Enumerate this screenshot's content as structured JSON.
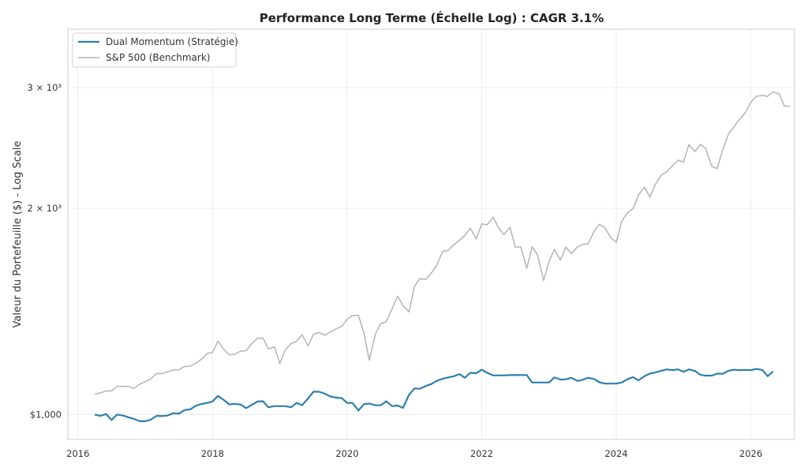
{
  "chart_data": {
    "type": "line",
    "title": "Performance Long Terme (Échelle Log) : CAGR 3.1%",
    "xlabel": "",
    "ylabel": "Valeur du Portefeuille ($) - Log Scale",
    "yscale": "log",
    "xlim": [
      2015.85,
      2026.65
    ],
    "ylim": [
      920,
      3650
    ],
    "grid": true,
    "legend_position": "top-left",
    "x_ticks": [
      {
        "value": 2016,
        "label": "2016"
      },
      {
        "value": 2018,
        "label": "2018"
      },
      {
        "value": 2020,
        "label": "2020"
      },
      {
        "value": 2022,
        "label": "2022"
      },
      {
        "value": 2024,
        "label": "2024"
      },
      {
        "value": 2026,
        "label": "2026"
      }
    ],
    "y_ticks": [
      {
        "value": 1000,
        "label": "$1,000"
      },
      {
        "value": 2000,
        "label": "2 × 10³"
      },
      {
        "value": 3000,
        "label": "3 × 10³"
      }
    ],
    "series": [
      {
        "name": "Dual Momentum (Stratégie)",
        "color": "#2e7fac",
        "points": [
          [
            2016.25,
            1000
          ],
          [
            2016.33,
            996
          ],
          [
            2016.42,
            1002
          ],
          [
            2016.5,
            982
          ],
          [
            2016.58,
            1000
          ],
          [
            2016.67,
            997
          ],
          [
            2016.75,
            991
          ],
          [
            2016.83,
            986
          ],
          [
            2016.92,
            978
          ],
          [
            2017.0,
            978
          ],
          [
            2017.08,
            983
          ],
          [
            2017.17,
            996
          ],
          [
            2017.25,
            995
          ],
          [
            2017.33,
            997
          ],
          [
            2017.42,
            1005
          ],
          [
            2017.5,
            1003
          ],
          [
            2017.58,
            1015
          ],
          [
            2017.67,
            1018
          ],
          [
            2017.75,
            1030
          ],
          [
            2017.83,
            1036
          ],
          [
            2017.92,
            1040
          ],
          [
            2018.0,
            1045
          ],
          [
            2018.08,
            1065
          ],
          [
            2018.17,
            1050
          ],
          [
            2018.25,
            1035
          ],
          [
            2018.33,
            1037
          ],
          [
            2018.42,
            1034
          ],
          [
            2018.5,
            1022
          ],
          [
            2018.58,
            1033
          ],
          [
            2018.67,
            1045
          ],
          [
            2018.75,
            1046
          ],
          [
            2018.83,
            1025
          ],
          [
            2018.92,
            1029
          ],
          [
            2019.0,
            1029
          ],
          [
            2019.08,
            1029
          ],
          [
            2019.17,
            1025
          ],
          [
            2019.25,
            1040
          ],
          [
            2019.33,
            1032
          ],
          [
            2019.42,
            1056
          ],
          [
            2019.5,
            1080
          ],
          [
            2019.58,
            1080
          ],
          [
            2019.67,
            1073
          ],
          [
            2019.75,
            1063
          ],
          [
            2019.83,
            1059
          ],
          [
            2019.92,
            1057
          ],
          [
            2020.0,
            1040
          ],
          [
            2020.08,
            1040
          ],
          [
            2020.17,
            1014
          ],
          [
            2020.25,
            1036
          ],
          [
            2020.33,
            1038
          ],
          [
            2020.42,
            1032
          ],
          [
            2020.5,
            1032
          ],
          [
            2020.58,
            1046
          ],
          [
            2020.67,
            1029
          ],
          [
            2020.75,
            1031
          ],
          [
            2020.83,
            1023
          ],
          [
            2020.92,
            1069
          ],
          [
            2021.0,
            1092
          ],
          [
            2021.08,
            1091
          ],
          [
            2021.17,
            1101
          ],
          [
            2021.25,
            1108
          ],
          [
            2021.33,
            1120
          ],
          [
            2021.42,
            1128
          ],
          [
            2021.5,
            1133
          ],
          [
            2021.58,
            1137
          ],
          [
            2021.67,
            1146
          ],
          [
            2021.75,
            1132
          ],
          [
            2021.83,
            1151
          ],
          [
            2021.92,
            1149
          ],
          [
            2022.0,
            1163
          ],
          [
            2022.08,
            1151
          ],
          [
            2022.17,
            1141
          ],
          [
            2022.25,
            1141
          ],
          [
            2022.33,
            1141
          ],
          [
            2022.42,
            1142
          ],
          [
            2022.5,
            1142
          ],
          [
            2022.58,
            1142
          ],
          [
            2022.67,
            1142
          ],
          [
            2022.75,
            1114
          ],
          [
            2022.83,
            1114
          ],
          [
            2022.92,
            1114
          ],
          [
            2023.0,
            1114
          ],
          [
            2023.08,
            1133
          ],
          [
            2023.17,
            1125
          ],
          [
            2023.25,
            1126
          ],
          [
            2023.33,
            1132
          ],
          [
            2023.42,
            1120
          ],
          [
            2023.5,
            1124
          ],
          [
            2023.58,
            1132
          ],
          [
            2023.67,
            1127
          ],
          [
            2023.75,
            1115
          ],
          [
            2023.83,
            1110
          ],
          [
            2023.92,
            1110
          ],
          [
            2024.0,
            1110
          ],
          [
            2024.08,
            1114
          ],
          [
            2024.17,
            1127
          ],
          [
            2024.25,
            1134
          ],
          [
            2024.33,
            1122
          ],
          [
            2024.42,
            1138
          ],
          [
            2024.5,
            1148
          ],
          [
            2024.58,
            1152
          ],
          [
            2024.67,
            1159
          ],
          [
            2024.75,
            1164
          ],
          [
            2024.83,
            1161
          ],
          [
            2024.92,
            1164
          ],
          [
            2025.0,
            1155
          ],
          [
            2025.08,
            1164
          ],
          [
            2025.17,
            1158
          ],
          [
            2025.25,
            1143
          ],
          [
            2025.33,
            1140
          ],
          [
            2025.42,
            1140
          ],
          [
            2025.5,
            1148
          ],
          [
            2025.58,
            1147
          ],
          [
            2025.67,
            1159
          ],
          [
            2025.75,
            1163
          ],
          [
            2025.83,
            1161
          ],
          [
            2025.92,
            1162
          ],
          [
            2026.0,
            1161
          ],
          [
            2026.08,
            1166
          ],
          [
            2026.17,
            1162
          ],
          [
            2026.25,
            1138
          ],
          [
            2026.33,
            1156
          ]
        ]
      },
      {
        "name": "S&P 500 (Benchmark)",
        "color": "#b4b4b4",
        "points": [
          [
            2016.25,
            1072
          ],
          [
            2016.33,
            1075
          ],
          [
            2016.42,
            1083
          ],
          [
            2016.5,
            1083
          ],
          [
            2016.58,
            1099
          ],
          [
            2016.67,
            1100
          ],
          [
            2016.75,
            1099
          ],
          [
            2016.83,
            1092
          ],
          [
            2016.92,
            1108
          ],
          [
            2017.0,
            1117
          ],
          [
            2017.08,
            1127
          ],
          [
            2017.17,
            1149
          ],
          [
            2017.25,
            1147
          ],
          [
            2017.33,
            1155
          ],
          [
            2017.42,
            1162
          ],
          [
            2017.5,
            1163
          ],
          [
            2017.58,
            1175
          ],
          [
            2017.67,
            1177
          ],
          [
            2017.75,
            1188
          ],
          [
            2017.83,
            1203
          ],
          [
            2017.92,
            1228
          ],
          [
            2018.0,
            1232
          ],
          [
            2018.08,
            1280
          ],
          [
            2018.17,
            1245
          ],
          [
            2018.25,
            1222
          ],
          [
            2018.33,
            1225
          ],
          [
            2018.42,
            1238
          ],
          [
            2018.5,
            1240
          ],
          [
            2018.58,
            1268
          ],
          [
            2018.67,
            1293
          ],
          [
            2018.75,
            1293
          ],
          [
            2018.83,
            1246
          ],
          [
            2018.92,
            1256
          ],
          [
            2019.0,
            1187
          ],
          [
            2019.08,
            1243
          ],
          [
            2019.17,
            1270
          ],
          [
            2019.25,
            1280
          ],
          [
            2019.33,
            1308
          ],
          [
            2019.42,
            1260
          ],
          [
            2019.5,
            1310
          ],
          [
            2019.58,
            1318
          ],
          [
            2019.67,
            1306
          ],
          [
            2019.75,
            1320
          ],
          [
            2019.83,
            1333
          ],
          [
            2019.92,
            1345
          ],
          [
            2020.0,
            1377
          ],
          [
            2020.08,
            1395
          ],
          [
            2020.17,
            1395
          ],
          [
            2020.25,
            1315
          ],
          [
            2020.33,
            1200
          ],
          [
            2020.42,
            1310
          ],
          [
            2020.5,
            1358
          ],
          [
            2020.58,
            1366
          ],
          [
            2020.67,
            1428
          ],
          [
            2020.75,
            1489
          ],
          [
            2020.83,
            1442
          ],
          [
            2020.92,
            1412
          ],
          [
            2021.0,
            1538
          ],
          [
            2021.08,
            1579
          ],
          [
            2021.17,
            1575
          ],
          [
            2021.25,
            1608
          ],
          [
            2021.33,
            1651
          ],
          [
            2021.42,
            1731
          ],
          [
            2021.5,
            1736
          ],
          [
            2021.58,
            1767
          ],
          [
            2021.67,
            1796
          ],
          [
            2021.75,
            1826
          ],
          [
            2021.83,
            1871
          ],
          [
            2021.92,
            1804
          ],
          [
            2022.0,
            1898
          ],
          [
            2022.08,
            1892
          ],
          [
            2022.17,
            1941
          ],
          [
            2022.25,
            1872
          ],
          [
            2022.33,
            1831
          ],
          [
            2022.42,
            1876
          ],
          [
            2022.5,
            1755
          ],
          [
            2022.58,
            1758
          ],
          [
            2022.67,
            1635
          ],
          [
            2022.75,
            1757
          ],
          [
            2022.83,
            1710
          ],
          [
            2022.92,
            1569
          ],
          [
            2023.0,
            1671
          ],
          [
            2023.08,
            1742
          ],
          [
            2023.17,
            1681
          ],
          [
            2023.25,
            1756
          ],
          [
            2023.33,
            1717
          ],
          [
            2023.42,
            1755
          ],
          [
            2023.5,
            1772
          ],
          [
            2023.58,
            1774
          ],
          [
            2023.67,
            1851
          ],
          [
            2023.75,
            1895
          ],
          [
            2023.83,
            1874
          ],
          [
            2023.92,
            1812
          ],
          [
            2024.0,
            1783
          ],
          [
            2024.08,
            1914
          ],
          [
            2024.17,
            1972
          ],
          [
            2024.25,
            1998
          ],
          [
            2024.33,
            2092
          ],
          [
            2024.42,
            2147
          ],
          [
            2024.5,
            2075
          ],
          [
            2024.58,
            2166
          ],
          [
            2024.67,
            2237
          ],
          [
            2024.75,
            2261
          ],
          [
            2024.83,
            2306
          ],
          [
            2024.92,
            2351
          ],
          [
            2025.0,
            2336
          ],
          [
            2025.08,
            2476
          ],
          [
            2025.17,
            2420
          ],
          [
            2025.25,
            2479
          ],
          [
            2025.33,
            2445
          ],
          [
            2025.42,
            2302
          ],
          [
            2025.5,
            2285
          ],
          [
            2025.58,
            2433
          ],
          [
            2025.67,
            2570
          ],
          [
            2025.75,
            2631
          ],
          [
            2025.83,
            2693
          ],
          [
            2025.92,
            2759
          ],
          [
            2026.0,
            2855
          ],
          [
            2026.08,
            2913
          ],
          [
            2026.17,
            2922
          ],
          [
            2026.25,
            2913
          ],
          [
            2026.33,
            2958
          ],
          [
            2026.42,
            2938
          ],
          [
            2026.5,
            2818
          ],
          [
            2026.58,
            2818
          ]
        ]
      }
    ]
  }
}
